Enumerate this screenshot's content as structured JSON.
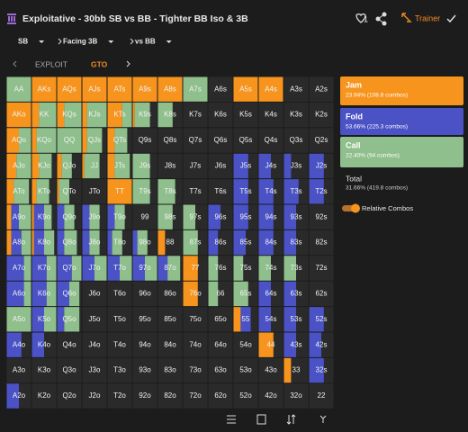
{
  "header": {
    "title": "Exploitative - 30bb SB vs BB - Tighter BB Iso & 3B",
    "likes": "1",
    "trainer": "Trainer"
  },
  "filters": [
    "SB",
    "Facing 3B",
    "vs BB"
  ],
  "tabs": [
    "EXPLOIT",
    "GTO"
  ],
  "legend": [
    {
      "name": "Jam",
      "stat": "23.94% (108.8 combos)"
    },
    {
      "name": "Fold",
      "stat": "53.66% (225.3 combos)"
    },
    {
      "name": "Call",
      "stat": "22.40% (94 combos)"
    }
  ],
  "total": {
    "name": "Total",
    "stat": "31.66% (419.8 combos)"
  },
  "toggle": "Relative Combos",
  "grid": {
    "hands": [
      [
        "AA",
        "AKs",
        "AQs",
        "AJs",
        "ATs",
        "A9s",
        "A8s",
        "A7s",
        "A6s",
        "A5s",
        "A4s",
        "A3s",
        "A2s"
      ],
      [
        "AKo",
        "KK",
        "KQs",
        "KJs",
        "KTs",
        "K9s",
        "K8s",
        "K7s",
        "K6s",
        "K5s",
        "K4s",
        "K3s",
        "K2s"
      ],
      [
        "AQo",
        "KQo",
        "QQ",
        "QJs",
        "QTs",
        "Q9s",
        "Q8s",
        "Q7s",
        "Q6s",
        "Q5s",
        "Q4s",
        "Q3s",
        "Q2s"
      ],
      [
        "AJo",
        "KJo",
        "QJo",
        "JJ",
        "JTs",
        "J9s",
        "J8s",
        "J7s",
        "J6s",
        "J5s",
        "J4s",
        "J3s",
        "J2s"
      ],
      [
        "ATo",
        "KTo",
        "QTo",
        "JTo",
        "TT",
        "T9s",
        "T8s",
        "T7s",
        "T6s",
        "T5s",
        "T4s",
        "T3s",
        "T2s"
      ],
      [
        "A9o",
        "K9o",
        "Q9o",
        "J9o",
        "T9o",
        "99",
        "98s",
        "97s",
        "96s",
        "95s",
        "94s",
        "93s",
        "92s"
      ],
      [
        "A8o",
        "K8o",
        "Q8o",
        "J8o",
        "T8o",
        "98o",
        "88",
        "87s",
        "86s",
        "85s",
        "84s",
        "83s",
        "82s"
      ],
      [
        "A7o",
        "K7o",
        "Q7o",
        "J7o",
        "T7o",
        "97o",
        "87o",
        "77",
        "76s",
        "75s",
        "74s",
        "73s",
        "72s"
      ],
      [
        "A6o",
        "K6o",
        "Q6o",
        "J6o",
        "T6o",
        "96o",
        "86o",
        "76o",
        "66",
        "65s",
        "64s",
        "63s",
        "62s"
      ],
      [
        "A5o",
        "K5o",
        "Q5o",
        "J5o",
        "T5o",
        "95o",
        "85o",
        "75o",
        "65o",
        "55",
        "54s",
        "53s",
        "52s"
      ],
      [
        "A4o",
        "K4o",
        "Q4o",
        "J4o",
        "T4o",
        "94o",
        "84o",
        "74o",
        "64o",
        "54o",
        "44",
        "43s",
        "42s"
      ],
      [
        "A3o",
        "K3o",
        "Q3o",
        "J3o",
        "T3o",
        "93o",
        "83o",
        "73o",
        "63o",
        "53o",
        "43o",
        "33",
        "32s"
      ],
      [
        "A2o",
        "K2o",
        "Q2o",
        "J2o",
        "T2o",
        "92o",
        "82o",
        "72o",
        "62o",
        "52o",
        "42o",
        "32o",
        "22"
      ]
    ],
    "mix": [
      [
        [
          0,
          0,
          100
        ],
        [
          100,
          0,
          0
        ],
        [
          100,
          0,
          0
        ],
        [
          100,
          0,
          0
        ],
        [
          100,
          0,
          0
        ],
        [
          100,
          0,
          0
        ],
        [
          100,
          0,
          0
        ],
        [
          0,
          0,
          100
        ],
        [
          0,
          0,
          0
        ],
        [
          100,
          0,
          0
        ],
        [
          100,
          0,
          0
        ],
        [
          0,
          0,
          0
        ],
        [
          0,
          0,
          0
        ]
      ],
      [
        [
          100,
          0,
          0
        ],
        [
          30,
          0,
          70
        ],
        [
          30,
          0,
          70
        ],
        [
          20,
          0,
          80
        ],
        [
          60,
          0,
          40
        ],
        [
          10,
          0,
          60
        ],
        [
          0,
          0,
          60
        ],
        [
          0,
          0,
          0
        ],
        [
          0,
          0,
          0
        ],
        [
          0,
          0,
          0
        ],
        [
          0,
          0,
          0
        ],
        [
          0,
          0,
          0
        ],
        [
          0,
          0,
          0
        ]
      ],
      [
        [
          50,
          0,
          50
        ],
        [
          20,
          0,
          80
        ],
        [
          0,
          0,
          100
        ],
        [
          20,
          0,
          60
        ],
        [
          30,
          0,
          50
        ],
        [
          0,
          0,
          0
        ],
        [
          0,
          0,
          0
        ],
        [
          0,
          0,
          0
        ],
        [
          0,
          0,
          0
        ],
        [
          0,
          0,
          0
        ],
        [
          0,
          0,
          0
        ],
        [
          0,
          0,
          0
        ],
        [
          0,
          0,
          0
        ]
      ],
      [
        [
          40,
          0,
          60
        ],
        [
          30,
          0,
          50
        ],
        [
          20,
          0,
          40
        ],
        [
          10,
          0,
          60
        ],
        [
          30,
          0,
          60
        ],
        [
          0,
          0,
          70
        ],
        [
          0,
          0,
          0
        ],
        [
          0,
          0,
          0
        ],
        [
          0,
          0,
          0
        ],
        [
          0,
          60,
          0
        ],
        [
          0,
          50,
          0
        ],
        [
          0,
          30,
          0
        ],
        [
          0,
          60,
          0
        ]
      ],
      [
        [
          30,
          0,
          60
        ],
        [
          20,
          0,
          50
        ],
        [
          10,
          0,
          40
        ],
        [
          0,
          0,
          0
        ],
        [
          100,
          0,
          0
        ],
        [
          0,
          0,
          70
        ],
        [
          0,
          0,
          70
        ],
        [
          0,
          0,
          0
        ],
        [
          0,
          0,
          0
        ],
        [
          0,
          60,
          0
        ],
        [
          0,
          60,
          0
        ],
        [
          0,
          60,
          0
        ],
        [
          0,
          60,
          0
        ]
      ],
      [
        [
          20,
          30,
          50
        ],
        [
          10,
          40,
          30
        ],
        [
          0,
          30,
          40
        ],
        [
          0,
          30,
          40
        ],
        [
          0,
          30,
          40
        ],
        [
          0,
          0,
          0
        ],
        [
          0,
          0,
          60
        ],
        [
          0,
          0,
          50
        ],
        [
          0,
          50,
          0
        ],
        [
          0,
          60,
          0
        ],
        [
          0,
          60,
          0
        ],
        [
          0,
          50,
          0
        ],
        [
          0,
          0,
          0
        ]
      ],
      [
        [
          20,
          40,
          40
        ],
        [
          10,
          40,
          40
        ],
        [
          0,
          30,
          50
        ],
        [
          0,
          30,
          40
        ],
        [
          0,
          20,
          40
        ],
        [
          0,
          20,
          40
        ],
        [
          30,
          0,
          0
        ],
        [
          0,
          0,
          60
        ],
        [
          0,
          40,
          0
        ],
        [
          0,
          50,
          0
        ],
        [
          0,
          60,
          0
        ],
        [
          0,
          50,
          0
        ],
        [
          0,
          0,
          0
        ]
      ],
      [
        [
          0,
          70,
          30
        ],
        [
          0,
          60,
          40
        ],
        [
          0,
          60,
          40
        ],
        [
          0,
          50,
          50
        ],
        [
          0,
          50,
          50
        ],
        [
          0,
          50,
          50
        ],
        [
          0,
          40,
          50
        ],
        [
          60,
          0,
          0
        ],
        [
          0,
          0,
          40
        ],
        [
          0,
          0,
          40
        ],
        [
          0,
          0,
          50
        ],
        [
          0,
          0,
          50
        ],
        [
          0,
          0,
          0
        ]
      ],
      [
        [
          0,
          70,
          30
        ],
        [
          0,
          60,
          40
        ],
        [
          0,
          50,
          40
        ],
        [
          0,
          0,
          0
        ],
        [
          0,
          0,
          0
        ],
        [
          0,
          0,
          0
        ],
        [
          0,
          0,
          0
        ],
        [
          60,
          0,
          0
        ],
        [
          0,
          0,
          40
        ],
        [
          0,
          0,
          60
        ],
        [
          0,
          50,
          0
        ],
        [
          0,
          50,
          0
        ],
        [
          0,
          0,
          0
        ]
      ],
      [
        [
          0,
          0,
          100
        ],
        [
          0,
          50,
          50
        ],
        [
          0,
          30,
          60
        ],
        [
          0,
          0,
          0
        ],
        [
          0,
          0,
          0
        ],
        [
          0,
          0,
          0
        ],
        [
          0,
          0,
          0
        ],
        [
          0,
          0,
          0
        ],
        [
          0,
          0,
          0
        ],
        [
          30,
          40,
          0
        ],
        [
          0,
          50,
          0
        ],
        [
          0,
          50,
          0
        ],
        [
          0,
          60,
          0
        ]
      ],
      [
        [
          0,
          60,
          0
        ],
        [
          0,
          50,
          0
        ],
        [
          0,
          0,
          0
        ],
        [
          0,
          0,
          0
        ],
        [
          0,
          0,
          0
        ],
        [
          0,
          0,
          0
        ],
        [
          0,
          0,
          0
        ],
        [
          0,
          0,
          0
        ],
        [
          0,
          0,
          0
        ],
        [
          0,
          0,
          0
        ],
        [
          60,
          0,
          0
        ],
        [
          0,
          50,
          0
        ],
        [
          0,
          50,
          0
        ]
      ],
      [
        [
          0,
          0,
          0
        ],
        [
          0,
          0,
          0
        ],
        [
          0,
          0,
          0
        ],
        [
          0,
          0,
          0
        ],
        [
          0,
          0,
          0
        ],
        [
          0,
          0,
          0
        ],
        [
          0,
          0,
          0
        ],
        [
          0,
          0,
          0
        ],
        [
          0,
          0,
          0
        ],
        [
          0,
          0,
          0
        ],
        [
          0,
          0,
          0
        ],
        [
          30,
          0,
          0
        ],
        [
          0,
          60,
          0
        ]
      ],
      [
        [
          0,
          50,
          0
        ],
        [
          0,
          0,
          0
        ],
        [
          0,
          0,
          0
        ],
        [
          0,
          0,
          0
        ],
        [
          0,
          0,
          0
        ],
        [
          0,
          0,
          0
        ],
        [
          0,
          0,
          0
        ],
        [
          0,
          0,
          0
        ],
        [
          0,
          0,
          0
        ],
        [
          0,
          0,
          0
        ],
        [
          0,
          0,
          0
        ],
        [
          0,
          0,
          0
        ],
        [
          0,
          0,
          0
        ]
      ]
    ]
  }
}
